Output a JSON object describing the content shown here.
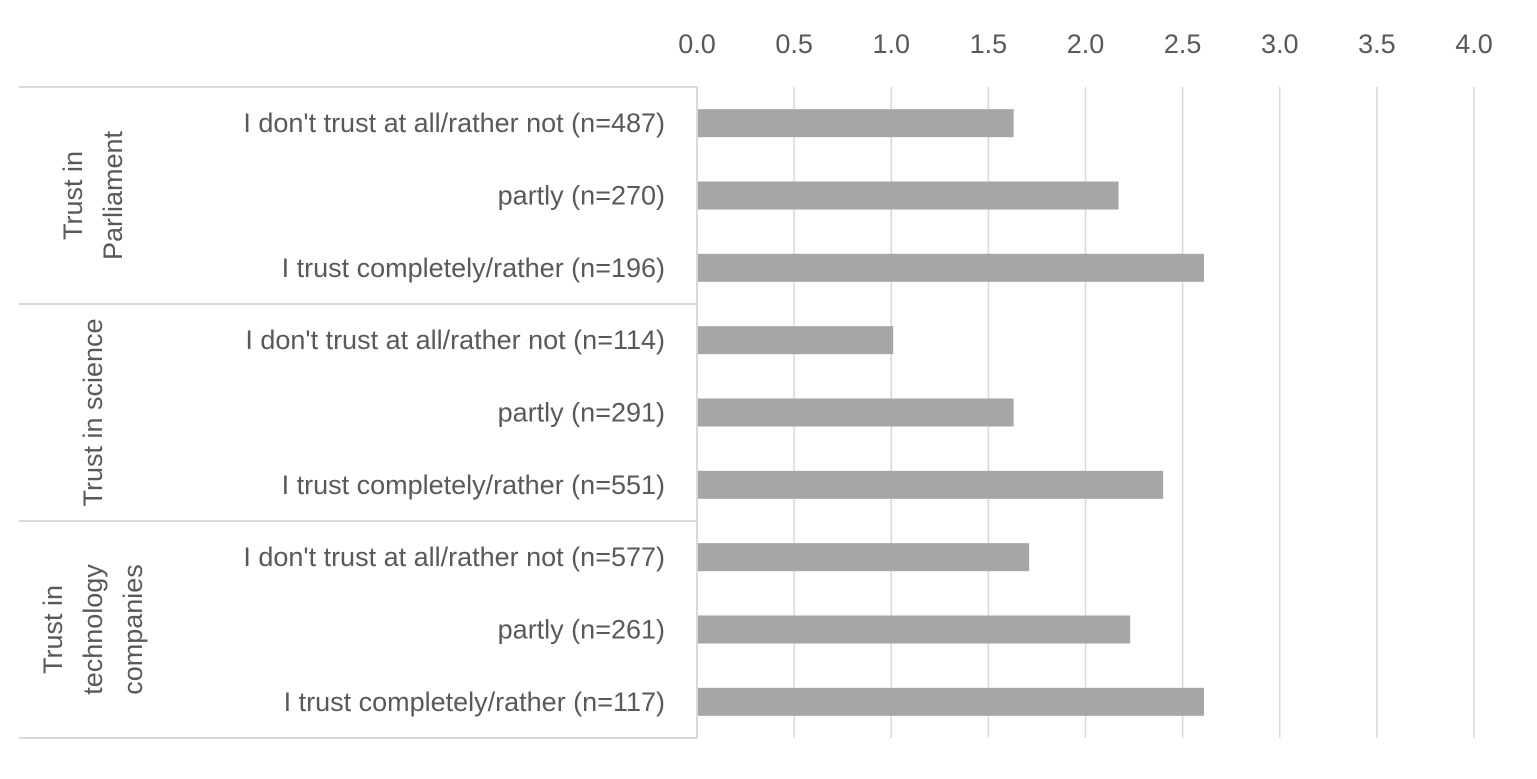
{
  "chart_data": {
    "type": "bar",
    "orientation": "horizontal",
    "title": "",
    "xlabel": "",
    "ylabel": "",
    "xlim": [
      0,
      4
    ],
    "xticks": [
      "0.0",
      "0.5",
      "1.0",
      "1.5",
      "2.0",
      "2.5",
      "3.0",
      "3.5",
      "4.0"
    ],
    "grid": true,
    "bar_color": "#a6a6a6",
    "groups": [
      {
        "name_lines": [
          "Trust in",
          "Parliament"
        ],
        "categories": [
          {
            "label": "I don't trust at all/rather not (n=487)",
            "value": 1.63
          },
          {
            "label": "partly (n=270)",
            "value": 2.17
          },
          {
            "label": "I trust completely/rather (n=196)",
            "value": 2.61
          }
        ]
      },
      {
        "name_lines": [
          "Trust in science"
        ],
        "categories": [
          {
            "label": "I don't trust at all/rather not (n=114)",
            "value": 1.01
          },
          {
            "label": "partly (n=291)",
            "value": 1.63
          },
          {
            "label": "I trust completely/rather (n=551)",
            "value": 2.4
          }
        ]
      },
      {
        "name_lines": [
          "Trust in",
          "technology",
          "companies"
        ],
        "categories": [
          {
            "label": "I don't trust at all/rather not (n=577)",
            "value": 1.71
          },
          {
            "label": "partly (n=261)",
            "value": 2.23
          },
          {
            "label": "I trust completely/rather (n=117)",
            "value": 2.61
          }
        ]
      }
    ]
  }
}
